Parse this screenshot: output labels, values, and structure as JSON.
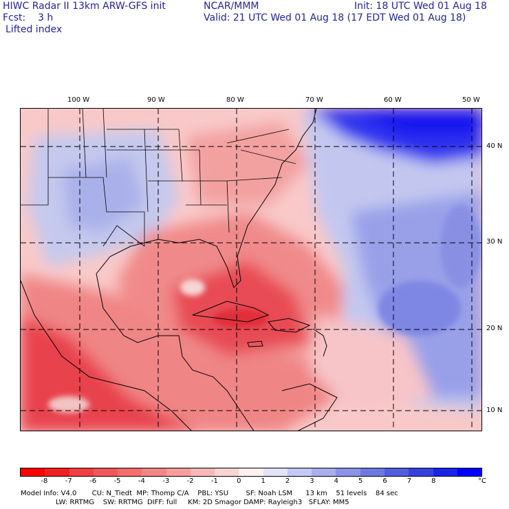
{
  "header": {
    "line1_left": "HIWC Radar II 13km ARW-GFS init",
    "line1_mid": "NCAR/MMM",
    "line1_right": "Init: 18 UTC Wed 01 Aug 18",
    "line2_left": "Fcst:    3 h",
    "line2_right": "Valid: 21 UTC Wed 01 Aug 18 (17 EDT Wed 01 Aug 18)",
    "field": "Lifted index"
  },
  "map": {
    "lon_labels": [
      "100 W",
      "90 W",
      "80 W",
      "70 W",
      "60 W",
      "50 W"
    ],
    "lat_labels": [
      "40 N",
      "30 N",
      "20 N",
      "10 N"
    ],
    "colors": {
      "warm_strong": "#e8303a",
      "warm_mid": "#f07070",
      "warm_light": "#f9b3b3",
      "neutral": "#fff3f3",
      "cool_light": "#c9ccf2",
      "cool_mid": "#8f97e6",
      "cool_strong": "#1d1df0",
      "coast": "#000000"
    }
  },
  "colorbar": {
    "labels": [
      "-8",
      "-7",
      "-6",
      "-5",
      "-4",
      "-3",
      "-2",
      "-1",
      "0",
      "1",
      "2",
      "3",
      "4",
      "5",
      "6",
      "7",
      "8",
      "°C"
    ],
    "swatches": [
      "#ff0000",
      "#f02020",
      "#f24040",
      "#f35757",
      "#f46e6e",
      "#f58686",
      "#f79d9d",
      "#f9b7b7",
      "#fbd3d3",
      "#fff0f0",
      "#e2e3fa",
      "#c5c8f4",
      "#a8aeee",
      "#8c93e8",
      "#6f78e2",
      "#535dde",
      "#3642e0",
      "#1a24e8",
      "#0000ff"
    ]
  },
  "footer": {
    "line1": "Model Info: V4.0       CU: N_Tiedt  MP: Thomp C/A    PBL: YSU        SF: Noah LSM      13 km    51 levels    84 sec",
    "line2": "                LW: RRTMG    SW: RRTMG  DIFF: full     KM: 2D Smagor DAMP: Rayleigh3   SFLAY: MM5"
  }
}
